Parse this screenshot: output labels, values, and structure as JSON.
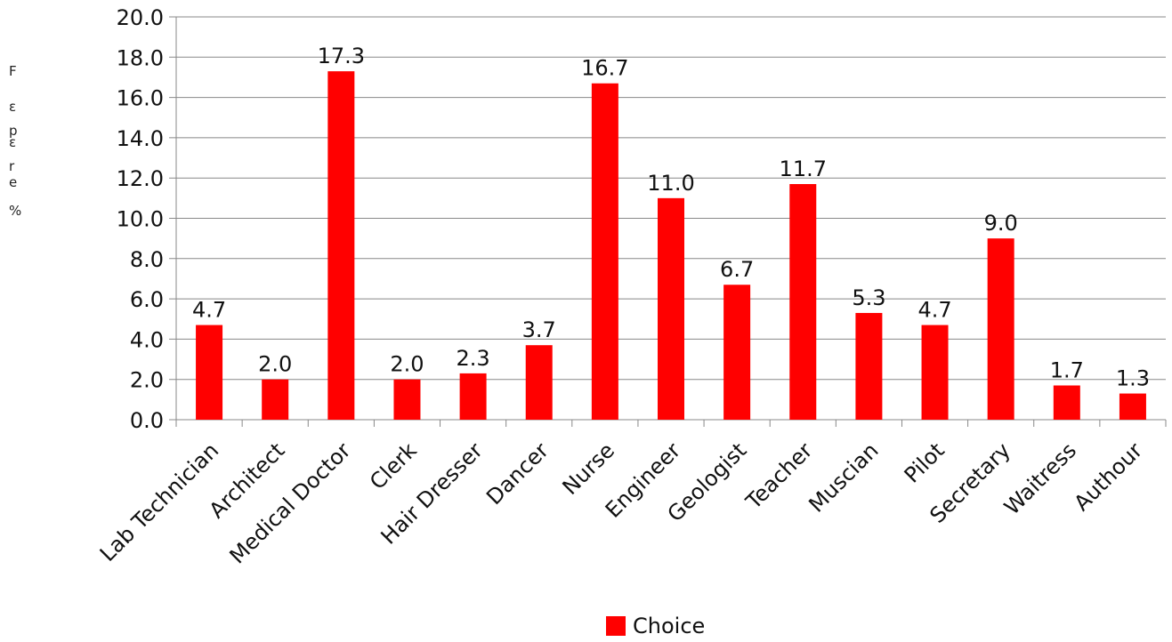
{
  "chart_data": {
    "type": "bar",
    "categories": [
      "Lab Technician",
      "Architect",
      "Medical Doctor",
      "Clerk",
      "Hair Dresser",
      "Dancer",
      "Nurse",
      "Engineer",
      "Geologist",
      "Teacher",
      "Muscian",
      "Pilot",
      "Secretary",
      "Waitress",
      "Authour"
    ],
    "series": [
      {
        "name": "Choice",
        "values": [
          4.7,
          2.0,
          17.3,
          2.0,
          2.3,
          3.7,
          16.7,
          11.0,
          6.7,
          11.7,
          5.3,
          4.7,
          9.0,
          1.7,
          1.3
        ]
      }
    ],
    "value_labels": [
      "4.7",
      "2.0",
      "17.3",
      "2.0",
      "2.3",
      "3.7",
      "16.7",
      "11.0",
      "6.7",
      "11.7",
      "5.3",
      "4.7",
      "9.0",
      "1.7",
      "1.3"
    ],
    "y_ticks": [
      "0.0",
      "2.0",
      "4.0",
      "6.0",
      "8.0",
      "10.0",
      "12.0",
      "14.0",
      "16.0",
      "18.0",
      "20.0"
    ],
    "ylim": [
      0,
      20
    ],
    "ylabel_fragments": [
      "F",
      "ε",
      "p",
      "ε",
      "r",
      "e",
      "%"
    ],
    "xlabel": "",
    "title": "",
    "grid": true,
    "legend": {
      "position": "bottom-center",
      "label": "Choice"
    },
    "colors": {
      "bar": "#ff0000",
      "grid": "#888888",
      "axis": "#888888",
      "text": "#111111"
    }
  }
}
